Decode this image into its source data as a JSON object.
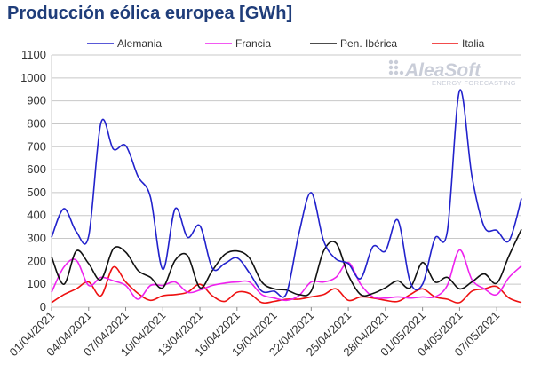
{
  "chart_data": {
    "type": "line",
    "title": "Producción eólica europea [GWh]",
    "xlabel": "",
    "ylabel": "",
    "ylim": [
      0,
      1100
    ],
    "yticks": [
      0,
      100,
      200,
      300,
      400,
      500,
      600,
      700,
      800,
      900,
      1000,
      1100
    ],
    "grid": true,
    "legend_position": "top",
    "x": [
      "01/04/2021",
      "02/04/2021",
      "03/04/2021",
      "04/04/2021",
      "05/04/2021",
      "06/04/2021",
      "07/04/2021",
      "08/04/2021",
      "09/04/2021",
      "10/04/2021",
      "11/04/2021",
      "12/04/2021",
      "13/04/2021",
      "14/04/2021",
      "15/04/2021",
      "16/04/2021",
      "17/04/2021",
      "18/04/2021",
      "19/04/2021",
      "20/04/2021",
      "21/04/2021",
      "22/04/2021",
      "23/04/2021",
      "24/04/2021",
      "25/04/2021",
      "26/04/2021",
      "27/04/2021",
      "28/04/2021",
      "29/04/2021",
      "30/04/2021",
      "01/05/2021",
      "02/05/2021",
      "03/05/2021",
      "04/05/2021",
      "05/05/2021",
      "06/05/2021",
      "07/05/2021",
      "08/05/2021",
      "09/05/2021"
    ],
    "xtick_labels": [
      "01/04/2021",
      "04/04/2021",
      "07/04/2021",
      "10/04/2021",
      "13/04/2021",
      "16/04/2021",
      "19/04/2021",
      "22/04/2021",
      "25/04/2021",
      "28/04/2021",
      "01/05/2021",
      "04/05/2021",
      "07/05/2021"
    ],
    "series": [
      {
        "name": "Alemania",
        "color": "#2222cc",
        "values": [
          305,
          430,
          330,
          310,
          805,
          690,
          705,
          570,
          480,
          165,
          430,
          305,
          355,
          170,
          190,
          215,
          150,
          70,
          70,
          60,
          320,
          500,
          290,
          210,
          190,
          125,
          265,
          245,
          380,
          110,
          100,
          300,
          330,
          945,
          570,
          350,
          335,
          290,
          475
        ]
      },
      {
        "name": "Francia",
        "color": "#ee22ee",
        "values": [
          65,
          175,
          205,
          95,
          130,
          115,
          95,
          35,
          95,
          95,
          110,
          65,
          75,
          95,
          105,
          110,
          110,
          55,
          40,
          30,
          50,
          110,
          110,
          130,
          195,
          100,
          45,
          40,
          45,
          40,
          45,
          45,
          95,
          250,
          120,
          80,
          55,
          130,
          180
        ]
      },
      {
        "name": "Pen. Ibérica",
        "color": "#111111",
        "values": [
          220,
          100,
          245,
          190,
          120,
          255,
          240,
          160,
          130,
          85,
          205,
          225,
          85,
          160,
          230,
          245,
          215,
          110,
          80,
          75,
          55,
          70,
          245,
          280,
          140,
          55,
          60,
          85,
          115,
          85,
          195,
          110,
          130,
          80,
          110,
          145,
          105,
          225,
          340
        ]
      },
      {
        "name": "Italia",
        "color": "#ee1111",
        "values": [
          20,
          55,
          80,
          110,
          50,
          175,
          110,
          60,
          30,
          50,
          55,
          65,
          100,
          50,
          25,
          65,
          60,
          20,
          25,
          35,
          35,
          45,
          55,
          80,
          30,
          45,
          40,
          30,
          25,
          55,
          80,
          45,
          35,
          20,
          70,
          80,
          90,
          40,
          20
        ]
      }
    ]
  },
  "watermark": {
    "name": "AleaSoft",
    "tagline": "ENERGY FORECASTING"
  },
  "colors": {
    "title": "#1f3d7a",
    "grid": "#c8c8c8",
    "axis": "#888888"
  }
}
